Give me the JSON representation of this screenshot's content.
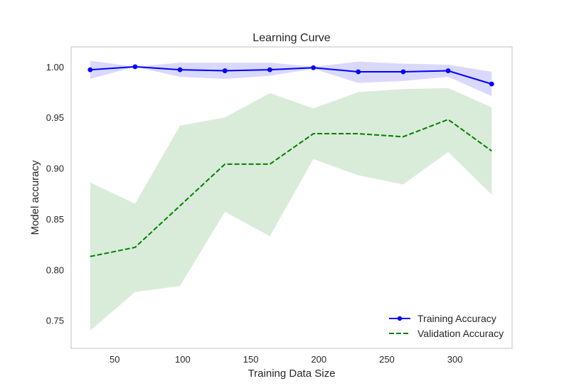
{
  "chart_data": {
    "type": "line",
    "title": "Learning Curve",
    "xlabel": "Training Data Size",
    "ylabel": "Model accuracy",
    "xlim": [
      18,
      342
    ],
    "ylim": [
      0.7225,
      1.0195
    ],
    "x_ticks": [
      50,
      100,
      150,
      200,
      250,
      300
    ],
    "x_tick_labels": [
      "50",
      "100",
      "150",
      "200",
      "250",
      "300"
    ],
    "y_ticks": [
      0.75,
      0.8,
      0.85,
      0.9,
      0.95,
      1.0
    ],
    "y_tick_labels": [
      "0.75",
      "0.80",
      "0.85",
      "0.90",
      "0.95",
      "1.00"
    ],
    "grid": false,
    "legend_position": "bottom-right",
    "x": [
      32,
      65,
      98,
      131,
      164,
      196,
      229,
      262,
      295,
      327
    ],
    "series": [
      {
        "name": "Training Accuracy",
        "color": "#0000ff",
        "line_style": "solid",
        "marker": "circle",
        "values": [
          0.997,
          1.0,
          0.997,
          0.996,
          0.997,
          0.999,
          0.995,
          0.995,
          0.996,
          0.983
        ],
        "band_upper": [
          1.006,
          1.0,
          1.004,
          1.004,
          1.004,
          1.0,
          1.005,
          1.003,
          1.002,
          0.995
        ],
        "band_lower": [
          0.988,
          1.0,
          0.99,
          0.988,
          0.991,
          0.998,
          0.984,
          0.986,
          0.99,
          0.971
        ],
        "band_color": "#0000ff",
        "band_opacity": 0.15
      },
      {
        "name": "Validation Accuracy",
        "color": "#008000",
        "line_style": "dashed",
        "marker": "none",
        "values": [
          0.813,
          0.822,
          0.863,
          0.904,
          0.904,
          0.934,
          0.934,
          0.931,
          0.948,
          0.917
        ],
        "band_upper": [
          0.886,
          0.865,
          0.942,
          0.95,
          0.974,
          0.959,
          0.975,
          0.978,
          0.979,
          0.96
        ],
        "band_lower": [
          0.74,
          0.778,
          0.784,
          0.857,
          0.833,
          0.909,
          0.893,
          0.884,
          0.916,
          0.874
        ],
        "band_color": "#008000",
        "band_opacity": 0.15
      }
    ]
  }
}
